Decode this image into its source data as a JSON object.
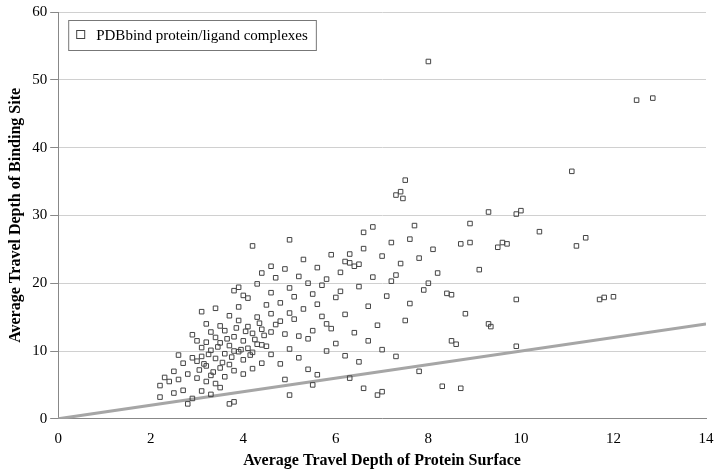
{
  "chart_data": {
    "type": "scatter",
    "x_label": "Average Travel Depth of Protein Surface",
    "y_label": "Average Travel Depth of Binding Site",
    "xlim": [
      0,
      14
    ],
    "xticks": [
      0,
      2,
      4,
      6,
      8,
      10,
      12,
      14
    ],
    "ylim": [
      0,
      60
    ],
    "yticks": [
      0,
      10,
      20,
      30,
      40,
      50,
      60
    ],
    "grid": "y",
    "legend": "upper left",
    "series": [
      {
        "name": "PDBbind protein/ligand complexes",
        "type": "scatter",
        "marker": "square",
        "color": "#444444",
        "x": [
          3.0,
          3.1,
          3.2,
          3.3,
          3.4,
          3.5,
          3.6,
          3.7,
          3.8,
          3.9,
          4.0,
          4.1,
          4.2,
          4.3,
          4.4,
          4.5,
          3.05,
          3.15,
          3.25,
          3.35,
          3.45,
          3.55,
          3.65,
          3.75,
          3.85,
          3.95,
          4.05,
          4.15,
          4.25,
          4.35,
          4.45,
          3.1,
          3.2,
          3.3,
          3.4,
          3.5,
          3.6,
          3.7,
          3.8,
          3.9,
          4.0,
          4.1,
          4.2,
          4.3,
          4.4,
          4.6,
          3.0,
          3.2,
          3.4,
          3.6,
          3.8,
          4.0,
          4.2,
          4.4,
          3.3,
          3.5,
          3.7,
          3.9,
          4.1,
          3.8,
          3.9,
          4.0,
          2.3,
          2.5,
          2.6,
          2.7,
          2.8,
          2.9,
          2.7,
          2.9,
          2.5,
          2.2,
          2.2,
          2.4,
          2.6,
          2.8,
          3.7,
          3.8,
          3.1,
          3.3,
          3.5,
          3.0,
          2.9,
          3.2,
          3.1,
          3.4,
          4.6,
          4.7,
          4.8,
          4.9,
          5.0,
          5.1,
          5.2,
          5.3,
          5.4,
          5.5,
          5.6,
          5.7,
          5.8,
          5.9,
          6.0,
          4.6,
          4.7,
          4.8,
          4.9,
          5.0,
          5.1,
          5.2,
          5.3,
          5.4,
          5.5,
          5.6,
          5.7,
          5.8,
          5.9,
          6.0,
          4.5,
          4.6,
          4.8,
          5.0,
          5.2,
          5.4,
          5.6,
          5.8,
          4.3,
          4.4,
          4.2,
          5.0,
          4.6,
          5.5,
          5.0,
          4.9,
          6.1,
          6.2,
          6.3,
          6.4,
          6.5,
          6.3,
          6.1,
          6.2,
          6.4,
          6.5,
          6.6,
          6.7,
          6.8,
          6.9,
          7.0,
          7.1,
          7.2,
          7.3,
          6.8,
          6.6,
          6.2,
          6.5,
          6.7,
          7.0,
          6.3,
          6.6,
          6.9,
          7.0,
          7.3,
          7.8,
          7.5,
          7.6,
          7.6,
          7.7,
          7.5,
          7.4,
          7.3,
          7.45,
          7.2,
          7.4,
          7.8,
          7.9,
          8.0,
          8.2,
          8.1,
          8.0,
          8.3,
          8.7,
          8.6,
          8.5,
          8.4,
          8.5,
          8.9,
          8.7,
          8.9,
          9.3,
          9.6,
          9.7,
          9.5,
          9.9,
          9.9,
          9.3,
          9.35,
          9.9,
          10.0,
          10.4,
          11.1,
          11.4,
          11.2,
          11.7,
          11.8,
          12.0,
          12.5,
          12.85,
          9.1,
          8.8
        ],
        "values": [
          8.5,
          9.2,
          7.8,
          10.1,
          8.9,
          11.2,
          9.6,
          10.8,
          12.1,
          9.9,
          11.5,
          10.4,
          12.6,
          11.0,
          13.2,
          10.7,
          7.2,
          8.1,
          9.5,
          6.9,
          10.6,
          8.3,
          11.8,
          9.1,
          13.4,
          10.2,
          12.9,
          9.4,
          11.7,
          14.1,
          12.3,
          10.5,
          11.3,
          6.4,
          12.0,
          7.5,
          13.0,
          8.0,
          10.0,
          14.5,
          8.7,
          13.6,
          9.8,
          15.0,
          10.9,
          12.8,
          6.0,
          5.5,
          5.2,
          6.2,
          7.1,
          6.6,
          7.4,
          8.2,
          12.8,
          13.7,
          15.2,
          16.5,
          17.8,
          18.9,
          19.4,
          18.2,
          6.1,
          7.0,
          5.8,
          8.2,
          6.6,
          9.0,
          4.2,
          3.0,
          3.8,
          3.2,
          4.9,
          5.5,
          9.4,
          2.2,
          2.2,
          2.5,
          4.1,
          3.6,
          4.6,
          11.5,
          12.4,
          14.0,
          15.8,
          16.3,
          15.5,
          13.9,
          17.1,
          12.5,
          19.3,
          14.7,
          21.0,
          16.2,
          11.8,
          18.4,
          22.3,
          15.1,
          20.6,
          13.3,
          17.9,
          9.5,
          20.8,
          8.1,
          22.1,
          10.3,
          18.0,
          9.0,
          23.5,
          7.3,
          13.0,
          6.5,
          19.7,
          10.0,
          24.2,
          11.1,
          16.8,
          18.6,
          14.4,
          15.6,
          12.2,
          20.0,
          16.9,
          14.0,
          19.9,
          21.5,
          25.5,
          26.4,
          22.5,
          5.0,
          3.5,
          5.8,
          21.6,
          23.2,
          23.0,
          22.5,
          22.8,
          24.3,
          18.8,
          15.4,
          12.7,
          19.5,
          25.1,
          16.6,
          20.9,
          13.8,
          24.0,
          18.1,
          26.0,
          21.2,
          28.3,
          27.5,
          9.3,
          8.4,
          11.5,
          10.2,
          6.0,
          4.5,
          3.5,
          4.0,
          9.2,
          7.0,
          14.5,
          17.0,
          26.5,
          28.5,
          35.2,
          33.5,
          33.0,
          32.5,
          20.3,
          22.9,
          23.7,
          19.0,
          20.0,
          21.5,
          25.0,
          52.7,
          4.8,
          4.5,
          11.0,
          11.5,
          18.5,
          18.3,
          28.8,
          25.8,
          26.0,
          30.5,
          26.0,
          25.8,
          25.3,
          17.6,
          10.7,
          14.0,
          13.6,
          30.2,
          30.7,
          27.6,
          36.5,
          26.7,
          25.5,
          17.6,
          17.9,
          18.0,
          47.0,
          47.3,
          22.0,
          15.5
        ]
      },
      {
        "type": "line",
        "color": "#a6a6a6",
        "line_style": "solid",
        "x": [
          0,
          14
        ],
        "values": [
          0,
          14
        ]
      }
    ]
  }
}
